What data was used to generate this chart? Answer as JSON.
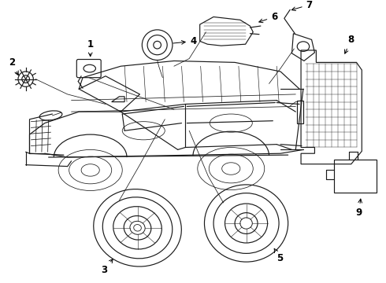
{
  "bg_color": "#ffffff",
  "line_color": "#1a1a1a",
  "fig_width": 4.9,
  "fig_height": 3.6,
  "dpi": 100,
  "font_size": 8.5
}
